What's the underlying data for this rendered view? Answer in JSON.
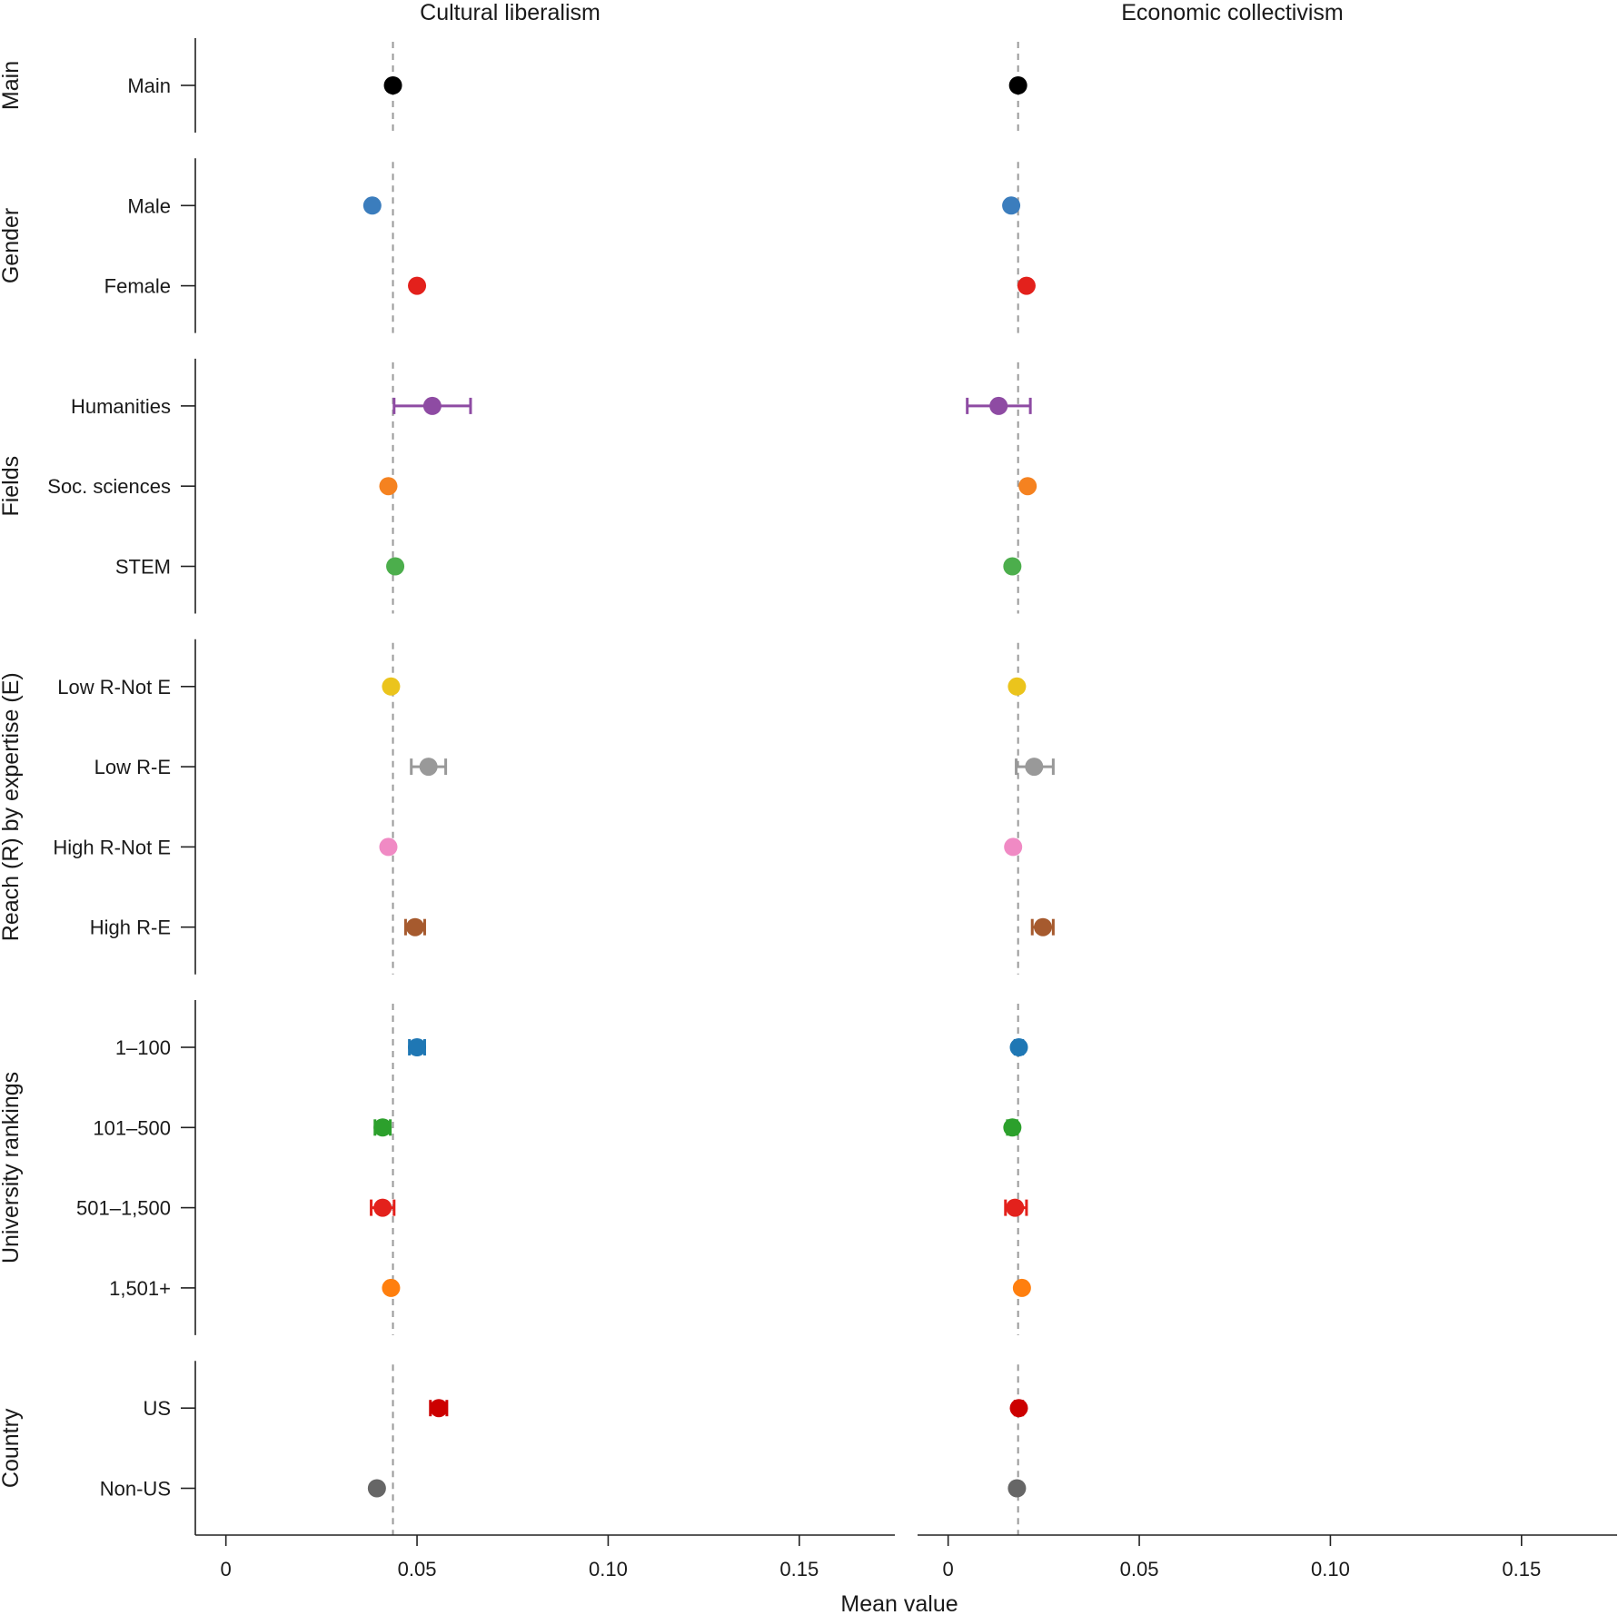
{
  "chart_data": {
    "type": "scatter",
    "xlabel": "Mean value",
    "xlim": [
      -0.008,
      0.175
    ],
    "xticks": [
      0,
      0.05,
      0.1,
      0.15
    ],
    "xtick_labels": [
      "0",
      "0.05",
      "0.10",
      "0.15"
    ],
    "reference_line": "dashed",
    "panels": [
      {
        "title": "Cultural liberalism",
        "reference": 0.0437
      },
      {
        "title": "Economic collectivism",
        "reference": 0.0183
      }
    ],
    "groups": [
      {
        "label": "Main",
        "rows": [
          {
            "label": "Main",
            "color": "#000000",
            "values": [
              {
                "mean": 0.0437,
                "lo": 0.0437,
                "hi": 0.0437
              },
              {
                "mean": 0.0183,
                "lo": 0.0183,
                "hi": 0.0183
              }
            ]
          }
        ]
      },
      {
        "label": "Gender",
        "rows": [
          {
            "label": "Male",
            "color": "#3b7dbd",
            "values": [
              {
                "mean": 0.0383,
                "lo": 0.0383,
                "hi": 0.0383
              },
              {
                "mean": 0.0165,
                "lo": 0.0165,
                "hi": 0.0165
              }
            ]
          },
          {
            "label": "Female",
            "color": "#e3211c",
            "values": [
              {
                "mean": 0.05,
                "lo": 0.0495,
                "hi": 0.0505
              },
              {
                "mean": 0.0205,
                "lo": 0.0205,
                "hi": 0.0205
              }
            ]
          }
        ]
      },
      {
        "label": "Fields",
        "rows": [
          {
            "label": "Humanities",
            "color": "#8e4ba3",
            "values": [
              {
                "mean": 0.054,
                "lo": 0.044,
                "hi": 0.064
              },
              {
                "mean": 0.0132,
                "lo": 0.005,
                "hi": 0.0215
              }
            ]
          },
          {
            "label": "Soc. sciences",
            "color": "#f58220",
            "values": [
              {
                "mean": 0.0425,
                "lo": 0.0425,
                "hi": 0.0425
              },
              {
                "mean": 0.0208,
                "lo": 0.0208,
                "hi": 0.0208
              }
            ]
          },
          {
            "label": "STEM",
            "color": "#4cae4c",
            "values": [
              {
                "mean": 0.0443,
                "lo": 0.0443,
                "hi": 0.0443
              },
              {
                "mean": 0.0168,
                "lo": 0.0168,
                "hi": 0.0168
              }
            ]
          }
        ]
      },
      {
        "label": "Reach (R) by expertise (E)",
        "rows": [
          {
            "label": "Low R-Not E",
            "color": "#ebc41c",
            "values": [
              {
                "mean": 0.0432,
                "lo": 0.0432,
                "hi": 0.0432
              },
              {
                "mean": 0.018,
                "lo": 0.018,
                "hi": 0.018
              }
            ]
          },
          {
            "label": "Low R-E",
            "color": "#999999",
            "values": [
              {
                "mean": 0.053,
                "lo": 0.0485,
                "hi": 0.0575
              },
              {
                "mean": 0.0225,
                "lo": 0.0178,
                "hi": 0.0275
              }
            ]
          },
          {
            "label": "High R-Not E",
            "color": "#f08ac4",
            "values": [
              {
                "mean": 0.0425,
                "lo": 0.0425,
                "hi": 0.0425
              },
              {
                "mean": 0.017,
                "lo": 0.017,
                "hi": 0.017
              }
            ]
          },
          {
            "label": "High R-E",
            "color": "#a65a2e",
            "values": [
              {
                "mean": 0.0495,
                "lo": 0.047,
                "hi": 0.052
              },
              {
                "mean": 0.0248,
                "lo": 0.022,
                "hi": 0.0275
              }
            ]
          }
        ]
      },
      {
        "label": "University rankings",
        "rows": [
          {
            "label": "1–100",
            "color": "#1f77b4",
            "values": [
              {
                "mean": 0.05,
                "lo": 0.048,
                "hi": 0.052
              },
              {
                "mean": 0.0185,
                "lo": 0.0175,
                "hi": 0.0195
              }
            ]
          },
          {
            "label": "101–500",
            "color": "#2ca02c",
            "values": [
              {
                "mean": 0.041,
                "lo": 0.039,
                "hi": 0.043
              },
              {
                "mean": 0.0168,
                "lo": 0.0155,
                "hi": 0.018
              }
            ]
          },
          {
            "label": "501–1,500",
            "color": "#e3211c",
            "values": [
              {
                "mean": 0.041,
                "lo": 0.038,
                "hi": 0.044
              },
              {
                "mean": 0.0175,
                "lo": 0.015,
                "hi": 0.0205
              }
            ]
          },
          {
            "label": "1,501+",
            "color": "#ff7f0e",
            "values": [
              {
                "mean": 0.0432,
                "lo": 0.0425,
                "hi": 0.044
              },
              {
                "mean": 0.0193,
                "lo": 0.019,
                "hi": 0.0196
              }
            ]
          }
        ]
      },
      {
        "label": "Country",
        "rows": [
          {
            "label": "US",
            "color": "#cc0000",
            "values": [
              {
                "mean": 0.0557,
                "lo": 0.0535,
                "hi": 0.0578
              },
              {
                "mean": 0.0185,
                "lo": 0.0175,
                "hi": 0.0195
              }
            ]
          },
          {
            "label": "Non-US",
            "color": "#666666",
            "values": [
              {
                "mean": 0.0395,
                "lo": 0.0395,
                "hi": 0.0395
              },
              {
                "mean": 0.018,
                "lo": 0.018,
                "hi": 0.018
              }
            ]
          }
        ]
      }
    ]
  }
}
